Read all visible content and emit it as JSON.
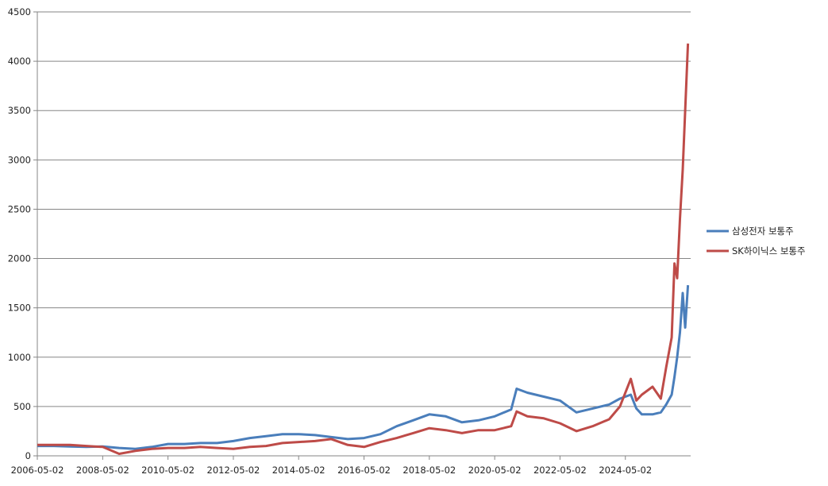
{
  "chart_data": {
    "type": "line",
    "x": [
      "2006-05-02",
      "2006-11-02",
      "2007-05-02",
      "2007-11-02",
      "2008-05-02",
      "2008-11-02",
      "2009-05-02",
      "2009-11-02",
      "2010-05-02",
      "2010-11-02",
      "2011-05-02",
      "2011-11-02",
      "2012-05-02",
      "2012-11-02",
      "2013-05-02",
      "2013-11-02",
      "2014-05-02",
      "2014-11-02",
      "2015-05-02",
      "2015-11-02",
      "2016-05-02",
      "2016-11-02",
      "2017-05-02",
      "2017-11-02",
      "2018-05-02",
      "2018-11-02",
      "2019-05-02",
      "2019-11-02",
      "2020-05-02",
      "2020-11-02",
      "2021-01-02",
      "2021-05-02",
      "2021-11-02",
      "2022-05-02",
      "2022-11-02",
      "2023-05-02",
      "2023-11-02",
      "2024-03-02",
      "2024-07-02",
      "2024-09-02",
      "2024-11-02",
      "2025-03-02",
      "2025-06-02",
      "2025-08-02",
      "2025-10-02",
      "2025-11-02",
      "2025-12-02",
      "2026-01-02",
      "2026-02-02",
      "2026-03-02",
      "2026-04-02"
    ],
    "series": [
      {
        "name": "삼성전자 보통주",
        "color": "#4a7ebb",
        "values": [
          100,
          100,
          95,
          90,
          95,
          80,
          70,
          90,
          120,
          120,
          130,
          130,
          150,
          180,
          200,
          220,
          220,
          210,
          190,
          170,
          180,
          220,
          300,
          360,
          420,
          400,
          340,
          360,
          400,
          470,
          680,
          640,
          600,
          560,
          440,
          480,
          520,
          580,
          620,
          480,
          420,
          420,
          440,
          520,
          620,
          800,
          1000,
          1250,
          1650,
          1300,
          1730
        ]
      },
      {
        "name": "SK하이닉스 보통주",
        "color": "#be4b48",
        "values": [
          110,
          110,
          110,
          100,
          90,
          20,
          50,
          70,
          80,
          80,
          90,
          80,
          70,
          90,
          100,
          130,
          140,
          150,
          170,
          110,
          90,
          140,
          180,
          230,
          280,
          260,
          230,
          260,
          260,
          300,
          450,
          400,
          380,
          330,
          250,
          300,
          370,
          500,
          780,
          560,
          620,
          700,
          580,
          900,
          1200,
          1950,
          1800,
          2400,
          2900,
          3500,
          4180
        ]
      }
    ],
    "xlim": [
      "2006-05-02",
      "2026-05-02"
    ],
    "xticks": [
      "2006-05-02",
      "2008-05-02",
      "2010-05-02",
      "2012-05-02",
      "2014-05-02",
      "2016-05-02",
      "2018-05-02",
      "2020-05-02",
      "2022-05-02",
      "2024-05-02"
    ],
    "ylim": [
      0,
      4500
    ],
    "yticks": [
      0,
      500,
      1000,
      1500,
      2000,
      2500,
      3000,
      3500,
      4000,
      4500
    ],
    "grid": true,
    "legend": "right"
  }
}
